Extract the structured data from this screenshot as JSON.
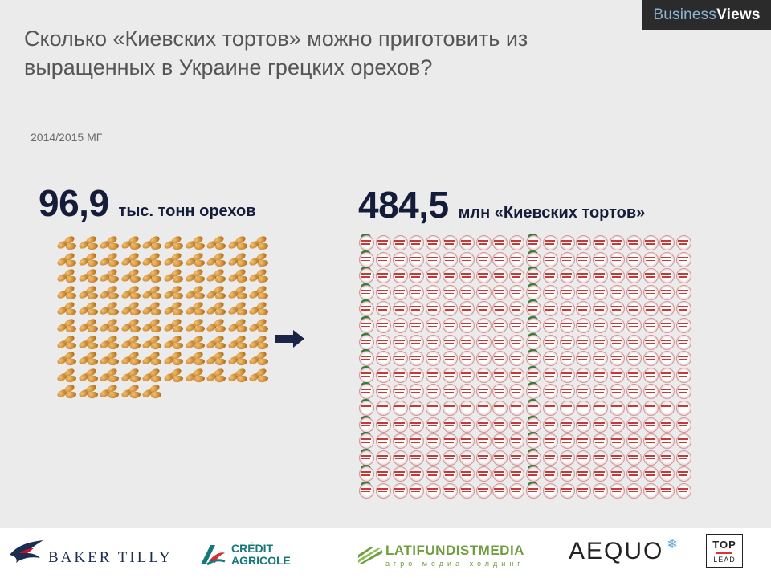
{
  "brand": {
    "part1": "Business",
    "part2": "Views"
  },
  "title": "Сколько «Киевских тортов» можно приготовить из выращенных в Украине грецких орехов?",
  "period": "2014/2015 МГ",
  "nuts": {
    "value": "96,9",
    "unit": "тыс. тонн орехов",
    "icon_count": 95,
    "icon": "walnut-icon"
  },
  "cakes": {
    "value": "484,5",
    "unit": "млн  «Киевских тортов»",
    "rows": 16,
    "cols": 20,
    "icon": "kyiv-cake-icon"
  },
  "arrow_icon": "right-arrow-icon",
  "colors": {
    "headline_value": "#151c3a",
    "background": "#ebebeb",
    "brand_bar": "#2b2b2b"
  },
  "footer": {
    "logos": [
      {
        "name": "BAKER TILLY"
      },
      {
        "name_line1": "CRÉDIT",
        "name_line2": "AGRICOLE"
      },
      {
        "name": "LATIFUNDISTMEDIA",
        "subtitle": "агро медиа холдинг"
      },
      {
        "name": "AEQUO"
      },
      {
        "name_line1": "TOP",
        "name_line2": "LEAD"
      }
    ]
  }
}
